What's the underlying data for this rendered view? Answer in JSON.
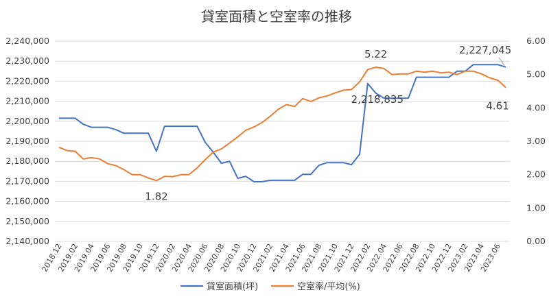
{
  "chart_data": {
    "type": "line",
    "title": "貸室面積と空室率の推移",
    "x": [
      "2018.12",
      "2019.01",
      "2019.02",
      "2019.03",
      "2019.04",
      "2019.05",
      "2019.06",
      "2019.07",
      "2019.08",
      "2019.09",
      "2019.10",
      "2019.11",
      "2019.12",
      "2020.01",
      "2020.02",
      "2020.03",
      "2020.04",
      "2020.05",
      "2020.06",
      "2020.07",
      "2020.08",
      "2020.09",
      "2020.10",
      "2020.11",
      "2020.12",
      "2021.01",
      "2021.02",
      "2021.03",
      "2021.04",
      "2021.05",
      "2021.06",
      "2021.07",
      "2021.08",
      "2021.09",
      "2021.10",
      "2021.11",
      "2021.12",
      "2022.01",
      "2022.02",
      "2022.03",
      "2022.04",
      "2022.05",
      "2022.06",
      "2022.07",
      "2022.08",
      "2022.09",
      "2022.10",
      "2022.11",
      "2022.12",
      "2023.01",
      "2023.02",
      "2023.03",
      "2023.04",
      "2023.05",
      "2023.06",
      "2023.07"
    ],
    "x_tick_labels": [
      "2018.12",
      "2019.02",
      "2019.04",
      "2019.06",
      "2019.08",
      "2019.10",
      "2019.12",
      "2020.02",
      "2020.04",
      "2020.06",
      "2020.08",
      "2020.10",
      "2020.12",
      "2021.02",
      "2021.04",
      "2021.06",
      "2021.08",
      "2021.10",
      "2021.12",
      "2022.02",
      "2022.04",
      "2022.06",
      "2022.08",
      "2022.10",
      "2022.12",
      "2023.02",
      "2023.04",
      "2023.06"
    ],
    "y_left": {
      "ylim": [
        2140000,
        2240000
      ],
      "ticks": [
        "2,140,000",
        "2,150,000",
        "2,160,000",
        "2,170,000",
        "2,180,000",
        "2,190,000",
        "2,200,000",
        "2,210,000",
        "2,220,000",
        "2,230,000",
        "2,240,000"
      ]
    },
    "y_right": {
      "ylim": [
        0,
        6
      ],
      "ticks": [
        "0.00",
        "1.00",
        "2.00",
        "3.00",
        "4.00",
        "5.00",
        "6.00"
      ]
    },
    "series": [
      {
        "name": "貸室面積(坪)",
        "axis": "left",
        "color": "#4472c4",
        "values": [
          2201500,
          2201500,
          2201500,
          2198500,
          2197000,
          2197000,
          2197000,
          2195800,
          2194000,
          2194000,
          2194000,
          2194000,
          2185000,
          2197500,
          2197500,
          2197500,
          2197500,
          2197500,
          2189500,
          2184500,
          2179000,
          2180000,
          2171500,
          2172500,
          2169800,
          2169800,
          2170500,
          2170500,
          2170500,
          2170500,
          2173500,
          2173500,
          2178000,
          2179300,
          2179300,
          2179300,
          2178300,
          2183500,
          2218835,
          2214000,
          2211500,
          2211500,
          2211500,
          2211500,
          2222000,
          2222000,
          2222000,
          2222000,
          2222000,
          2225000,
          2225000,
          2228300,
          2228300,
          2228300,
          2228300,
          2227045
        ]
      },
      {
        "name": "空室率/平均(%)",
        "axis": "right",
        "color": "#ed7d31",
        "values": [
          2.82,
          2.72,
          2.7,
          2.47,
          2.51,
          2.47,
          2.33,
          2.27,
          2.15,
          2.0,
          2.0,
          1.9,
          1.82,
          1.95,
          1.94,
          2.0,
          2.0,
          2.2,
          2.45,
          2.68,
          2.77,
          2.95,
          3.13,
          3.33,
          3.43,
          3.56,
          3.75,
          3.96,
          4.1,
          4.04,
          4.28,
          4.19,
          4.3,
          4.36,
          4.45,
          4.53,
          4.55,
          4.78,
          5.15,
          5.22,
          5.18,
          5.0,
          5.02,
          5.02,
          5.1,
          5.07,
          5.1,
          5.05,
          5.07,
          5.0,
          5.1,
          5.1,
          5.02,
          4.9,
          4.83,
          4.61
        ]
      }
    ],
    "annotations": [
      {
        "text": "1.82",
        "series": 1,
        "index": 12
      },
      {
        "text": "5.22",
        "series": 1,
        "index": 39
      },
      {
        "text": "2,218,835",
        "series": 0,
        "index": 38
      },
      {
        "text": "2,227,045",
        "series": 0,
        "index": 55
      },
      {
        "text": "4.61",
        "series": 1,
        "index": 55
      }
    ],
    "legend": {
      "placement": "bottom",
      "items": [
        "貸室面積(坪)",
        "空室率/平均(%)"
      ]
    },
    "grid": true
  }
}
